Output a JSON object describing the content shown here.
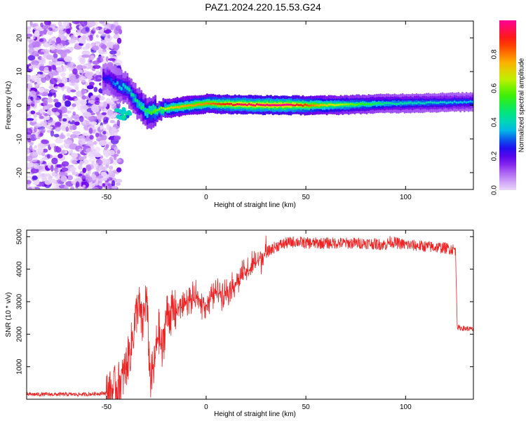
{
  "title": "PAZ1.2024.220.15.53.G24",
  "chart_data": [
    {
      "type": "heatmap",
      "xlabel": "Height of straight line (km)",
      "ylabel": "Frequency (Hz)",
      "xlim": [
        -90,
        134
      ],
      "ylim": [
        -25,
        25
      ],
      "x_ticks": [
        -50,
        0,
        50,
        100
      ],
      "y_ticks": [
        -20,
        -10,
        0,
        10,
        20
      ],
      "colorbar": {
        "label": "Normalized spectral amplitude",
        "range": [
          0,
          1
        ],
        "ticks": [
          "0.0",
          "0.2",
          "0.4",
          "0.6",
          "0.8"
        ]
      },
      "ridge": [
        {
          "x": -50,
          "freq": 8,
          "amplitude": 0.25
        },
        {
          "x": -45,
          "freq": 6,
          "amplitude": 0.35
        },
        {
          "x": -40,
          "freq": 5,
          "amplitude": 0.4
        },
        {
          "x": -35,
          "freq": 1,
          "amplitude": 0.45
        },
        {
          "x": -30,
          "freq": -2,
          "amplitude": 0.5
        },
        {
          "x": -25,
          "freq": -1.5,
          "amplitude": 0.6
        },
        {
          "x": -15,
          "freq": -0.5,
          "amplitude": 0.75
        },
        {
          "x": 0,
          "freq": 0.5,
          "amplitude": 0.8
        },
        {
          "x": 15,
          "freq": 0.2,
          "amplitude": 0.95
        },
        {
          "x": 40,
          "freq": 0,
          "amplitude": 1.0
        },
        {
          "x": 60,
          "freq": 0,
          "amplitude": 0.7
        },
        {
          "x": 90,
          "freq": 0.5,
          "amplitude": 0.45
        },
        {
          "x": 134,
          "freq": 1,
          "amplitude": 0.35
        }
      ]
    },
    {
      "type": "line",
      "xlabel": "Height of straight line (km)",
      "ylabel": "SNR (10 * v/v)",
      "xlim": [
        -90,
        134
      ],
      "ylim": [
        0,
        5200
      ],
      "x_ticks": [
        -50,
        0,
        50,
        100
      ],
      "y_ticks": [
        1000,
        2000,
        3000,
        4000,
        5000
      ],
      "color": "#ee2222",
      "series": [
        {
          "x": [
            -90,
            -60,
            -48,
            -42,
            -38,
            -34,
            -32,
            -30,
            -28,
            -26,
            -24,
            -22,
            -20,
            -15,
            -10,
            -5,
            0,
            5,
            10,
            15,
            20,
            25,
            30,
            35,
            40,
            45,
            50,
            60,
            70,
            80,
            90,
            92,
            100,
            110,
            120,
            125,
            126,
            134
          ],
          "y": [
            150,
            150,
            200,
            600,
            1500,
            3000,
            2200,
            3200,
            600,
            1000,
            2200,
            1400,
            2600,
            2700,
            3000,
            3100,
            2900,
            3300,
            3300,
            3600,
            3900,
            4200,
            4500,
            4700,
            4800,
            4850,
            4800,
            4800,
            4800,
            4800,
            4750,
            4850,
            4750,
            4700,
            4650,
            4600,
            2200,
            2150
          ]
        }
      ]
    }
  ]
}
